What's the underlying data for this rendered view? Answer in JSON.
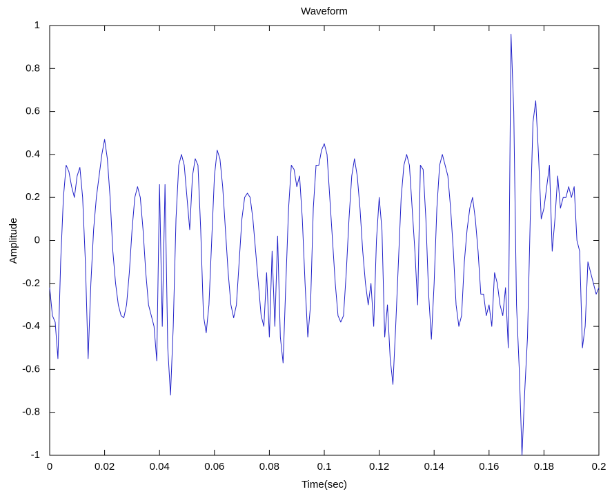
{
  "chart_data": {
    "type": "line",
    "title": "Waveform",
    "x_label": "Time(sec)",
    "y_label": "Amplitude",
    "x": [
      0,
      0.001,
      0.002,
      0.003,
      0.004,
      0.005,
      0.006,
      0.007,
      0.008,
      0.009,
      0.01,
      0.011,
      0.012,
      0.013,
      0.014,
      0.015,
      0.016,
      0.017,
      0.018,
      0.019,
      0.02,
      0.021,
      0.022,
      0.023,
      0.024,
      0.025,
      0.026,
      0.027,
      0.028,
      0.029,
      0.03,
      0.031,
      0.032,
      0.033,
      0.034,
      0.035,
      0.036,
      0.037,
      0.038,
      0.039,
      0.04,
      0.041,
      0.042,
      0.043,
      0.044,
      0.045,
      0.046,
      0.047,
      0.048,
      0.049,
      0.05,
      0.051,
      0.052,
      0.053,
      0.054,
      0.055,
      0.056,
      0.057,
      0.058,
      0.059,
      0.06,
      0.061,
      0.062,
      0.063,
      0.064,
      0.065,
      0.066,
      0.067,
      0.068,
      0.069,
      0.07,
      0.071,
      0.072,
      0.073,
      0.074,
      0.075,
      0.076,
      0.077,
      0.078,
      0.079,
      0.08,
      0.081,
      0.082,
      0.083,
      0.084,
      0.085,
      0.086,
      0.087,
      0.088,
      0.089,
      0.09,
      0.091,
      0.092,
      0.093,
      0.094,
      0.095,
      0.096,
      0.097,
      0.098,
      0.099,
      0.1,
      0.101,
      0.102,
      0.103,
      0.104,
      0.105,
      0.106,
      0.107,
      0.108,
      0.109,
      0.11,
      0.111,
      0.112,
      0.113,
      0.114,
      0.115,
      0.116,
      0.117,
      0.118,
      0.119,
      0.12,
      0.121,
      0.122,
      0.123,
      0.124,
      0.125,
      0.126,
      0.127,
      0.128,
      0.129,
      0.13,
      0.131,
      0.132,
      0.133,
      0.134,
      0.135,
      0.136,
      0.137,
      0.138,
      0.139,
      0.14,
      0.141,
      0.142,
      0.143,
      0.144,
      0.145,
      0.146,
      0.147,
      0.148,
      0.149,
      0.15,
      0.151,
      0.152,
      0.153,
      0.154,
      0.155,
      0.156,
      0.157,
      0.158,
      0.159,
      0.16,
      0.161,
      0.162,
      0.163,
      0.164,
      0.165,
      0.166,
      0.167,
      0.168,
      0.169,
      0.17,
      0.171,
      0.172,
      0.173,
      0.174,
      0.175,
      0.176,
      0.177,
      0.178,
      0.179,
      0.18,
      0.181,
      0.182,
      0.183,
      0.184,
      0.185,
      0.186,
      0.187,
      0.188,
      0.189,
      0.19,
      0.191,
      0.192,
      0.193,
      0.194,
      0.195,
      0.196,
      0.197,
      0.198,
      0.199,
      0.2
    ],
    "values": [
      -0.22,
      -0.35,
      -0.38,
      -0.55,
      -0.1,
      0.2,
      0.35,
      0.32,
      0.25,
      0.2,
      0.3,
      0.34,
      0.2,
      -0.1,
      -0.55,
      -0.2,
      0.05,
      0.2,
      0.3,
      0.4,
      0.47,
      0.38,
      0.2,
      -0.05,
      -0.2,
      -0.3,
      -0.35,
      -0.36,
      -0.3,
      -0.15,
      0.05,
      0.2,
      0.25,
      0.2,
      0.05,
      -0.15,
      -0.3,
      -0.35,
      -0.4,
      -0.56,
      0.26,
      -0.4,
      0.26,
      -0.5,
      -0.72,
      -0.4,
      0.1,
      0.35,
      0.4,
      0.35,
      0.2,
      0.05,
      0.3,
      0.38,
      0.35,
      0.05,
      -0.35,
      -0.43,
      -0.3,
      0,
      0.3,
      0.42,
      0.38,
      0.25,
      0.05,
      -0.15,
      -0.3,
      -0.36,
      -0.3,
      -0.1,
      0.1,
      0.2,
      0.22,
      0.2,
      0.1,
      -0.05,
      -0.2,
      -0.35,
      -0.4,
      -0.15,
      -0.45,
      -0.05,
      -0.4,
      0.02,
      -0.45,
      -0.57,
      -0.2,
      0.15,
      0.35,
      0.33,
      0.25,
      0.3,
      0.1,
      -0.2,
      -0.45,
      -0.3,
      0.15,
      0.35,
      0.35,
      0.42,
      0.45,
      0.4,
      0.2,
      0,
      -0.2,
      -0.35,
      -0.38,
      -0.35,
      -0.15,
      0.1,
      0.3,
      0.38,
      0.3,
      0.15,
      -0.05,
      -0.2,
      -0.3,
      -0.2,
      -0.4,
      0,
      0.2,
      0.05,
      -0.45,
      -0.3,
      -0.55,
      -0.67,
      -0.4,
      -0.1,
      0.2,
      0.35,
      0.4,
      0.35,
      0.15,
      -0.05,
      -0.3,
      0.35,
      0.33,
      0.1,
      -0.25,
      -0.46,
      -0.2,
      0.15,
      0.35,
      0.4,
      0.35,
      0.3,
      0.15,
      -0.05,
      -0.3,
      -0.4,
      -0.35,
      -0.1,
      0.05,
      0.15,
      0.2,
      0.1,
      -0.05,
      -0.25,
      -0.25,
      -0.35,
      -0.3,
      -0.4,
      -0.15,
      -0.2,
      -0.3,
      -0.35,
      -0.22,
      -0.5,
      0.96,
      0.6,
      -0.3,
      -0.6,
      -1,
      -0.7,
      -0.45,
      0.1,
      0.55,
      0.65,
      0.4,
      0.1,
      0.15,
      0.25,
      0.35,
      -0.05,
      0.1,
      0.3,
      0.15,
      0.2,
      0.2,
      0.25,
      0.2,
      0.25,
      0,
      -0.05,
      -0.5,
      -0.4,
      -0.1,
      -0.15,
      -0.2,
      -0.25,
      -0.22
    ],
    "color": "#2020c8",
    "xlim": [
      0,
      0.2
    ],
    "xticks": [
      0,
      0.02,
      0.04,
      0.06,
      0.08,
      0.1,
      0.12,
      0.14,
      0.16,
      0.18,
      0.2
    ],
    "ylim": [
      -1,
      1
    ],
    "yticks": [
      -1,
      -0.8,
      -0.6,
      -0.4,
      -0.2,
      0,
      0.2,
      0.4,
      0.6,
      0.8,
      1
    ],
    "grid": false
  }
}
